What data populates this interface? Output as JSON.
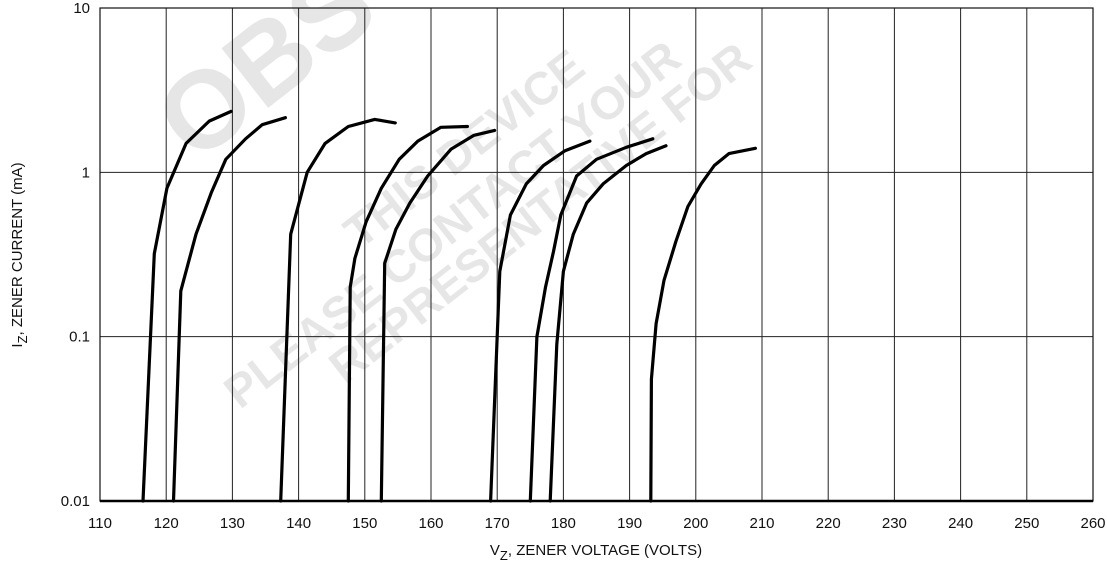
{
  "chart_data": {
    "type": "line",
    "title": "",
    "xlabel": "V",
    "xlabel_sub": "Z",
    "xlabel_rest": ", ZENER VOLTAGE (VOLTS)",
    "ylabel": "I",
    "ylabel_sub": "Z",
    "ylabel_rest": ", ZENER CURRENT (mA)",
    "xlim": [
      110,
      260
    ],
    "ylim": [
      0.01,
      10
    ],
    "yscale": "log",
    "grid": true,
    "xticks": [
      110,
      120,
      130,
      140,
      150,
      160,
      170,
      180,
      190,
      200,
      210,
      220,
      230,
      240,
      250,
      260
    ],
    "xtick_labels": [
      "110",
      "120",
      "130",
      "140",
      "150",
      "160",
      "170",
      "180",
      "190",
      "200",
      "210",
      "220",
      "230",
      "240",
      "250",
      "260"
    ],
    "yticks": [
      0.01,
      0.1,
      1,
      10
    ],
    "ytick_labels": [
      "0.01",
      "0.1",
      "1",
      "10"
    ],
    "series": [
      {
        "points": [
          [
            116.5,
            0.01
          ],
          [
            118.2,
            0.32
          ],
          [
            120.1,
            0.8
          ],
          [
            123.0,
            1.5
          ],
          [
            126.5,
            2.05
          ],
          [
            129.8,
            2.35
          ]
        ]
      },
      {
        "points": [
          [
            121.1,
            0.01
          ],
          [
            122.2,
            0.19
          ],
          [
            124.5,
            0.42
          ],
          [
            126.8,
            0.75
          ],
          [
            129.0,
            1.2
          ],
          [
            132.0,
            1.6
          ],
          [
            134.5,
            1.95
          ],
          [
            138.0,
            2.15
          ]
        ]
      },
      {
        "points": [
          [
            137.3,
            0.01
          ],
          [
            138.8,
            0.42
          ],
          [
            141.3,
            1.0
          ],
          [
            144.0,
            1.5
          ],
          [
            147.5,
            1.9
          ],
          [
            151.5,
            2.1
          ],
          [
            154.6,
            2.0
          ]
        ]
      },
      {
        "points": [
          [
            147.5,
            0.01
          ],
          [
            147.8,
            0.2
          ],
          [
            148.5,
            0.3
          ],
          [
            150.2,
            0.5
          ],
          [
            152.5,
            0.8
          ],
          [
            155.2,
            1.2
          ],
          [
            158.0,
            1.55
          ],
          [
            161.5,
            1.88
          ],
          [
            165.5,
            1.9
          ]
        ]
      },
      {
        "points": [
          [
            152.5,
            0.01
          ],
          [
            153.0,
            0.28
          ],
          [
            154.7,
            0.45
          ],
          [
            156.8,
            0.65
          ],
          [
            159.5,
            0.95
          ],
          [
            163.0,
            1.38
          ],
          [
            166.5,
            1.68
          ],
          [
            169.6,
            1.8
          ]
        ]
      },
      {
        "points": [
          [
            169.0,
            0.01
          ],
          [
            170.4,
            0.25
          ],
          [
            172.0,
            0.55
          ],
          [
            174.4,
            0.85
          ],
          [
            177.0,
            1.1
          ],
          [
            180.2,
            1.35
          ],
          [
            184.0,
            1.55
          ]
        ]
      },
      {
        "points": [
          [
            175.0,
            0.01
          ],
          [
            176.0,
            0.1
          ],
          [
            177.3,
            0.2
          ],
          [
            178.5,
            0.33
          ],
          [
            179.6,
            0.55
          ],
          [
            182.0,
            0.95
          ],
          [
            185.0,
            1.2
          ],
          [
            189.5,
            1.42
          ],
          [
            193.5,
            1.6
          ]
        ]
      },
      {
        "points": [
          [
            178.0,
            0.01
          ],
          [
            179.0,
            0.09
          ],
          [
            180.0,
            0.25
          ],
          [
            181.5,
            0.42
          ],
          [
            183.5,
            0.65
          ],
          [
            186.0,
            0.85
          ],
          [
            189.5,
            1.1
          ],
          [
            192.5,
            1.3
          ],
          [
            195.5,
            1.45
          ]
        ]
      },
      {
        "points": [
          [
            193.2,
            0.01
          ],
          [
            193.3,
            0.055
          ],
          [
            194.0,
            0.12
          ],
          [
            195.2,
            0.22
          ],
          [
            197.0,
            0.38
          ],
          [
            198.8,
            0.62
          ],
          [
            200.8,
            0.85
          ],
          [
            202.8,
            1.1
          ],
          [
            205.0,
            1.3
          ],
          [
            209.0,
            1.4
          ]
        ]
      }
    ]
  },
  "watermark": {
    "big": "OBS",
    "line1": "THIS DEVICE",
    "line2": "PLEASE CONTACT YOUR",
    "line3": "REPRESENTATIVE FOR"
  }
}
